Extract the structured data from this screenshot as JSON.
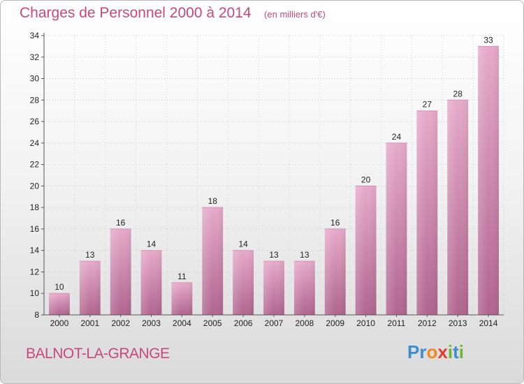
{
  "header": {
    "title": "Charges de Personnel 2000 à 2014",
    "subtitle": "(en milliers d'€)"
  },
  "footer": {
    "town": "BALNOT-LA-GRANGE",
    "logo_text": "Proxiti"
  },
  "colors": {
    "accent": "#c8487a",
    "bar_top": "#e6aacb",
    "bar_bottom": "#b0658f"
  },
  "chart_data": {
    "type": "bar",
    "title": "Charges de Personnel 2000 à 2014",
    "subtitle": "(en milliers d'€)",
    "xlabel": "",
    "ylabel": "",
    "categories": [
      "2000",
      "2001",
      "2002",
      "2003",
      "2004",
      "2005",
      "2006",
      "2007",
      "2008",
      "2009",
      "2010",
      "2011",
      "2012",
      "2013",
      "2014"
    ],
    "values": [
      10,
      13,
      16,
      14,
      11,
      18,
      14,
      13,
      13,
      16,
      20,
      24,
      27,
      28,
      33
    ],
    "ylim": [
      8,
      34
    ],
    "yticks": [
      8,
      10,
      12,
      14,
      16,
      18,
      20,
      22,
      24,
      26,
      28,
      30,
      32,
      34
    ],
    "grid": true,
    "legend": "none"
  }
}
